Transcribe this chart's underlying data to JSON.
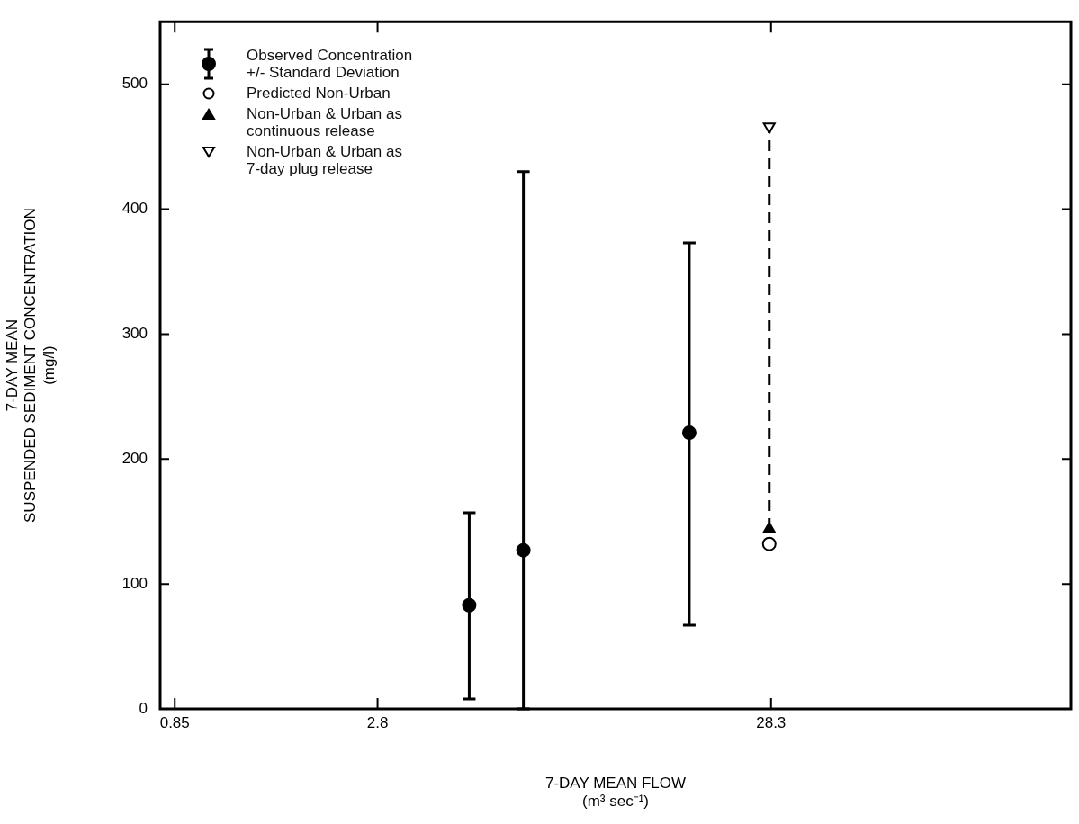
{
  "chart_data": {
    "type": "scatter",
    "xlabel": "7-DAY MEAN FLOW\n(m³ sec⁻¹)",
    "ylabel": "7-DAY MEAN\nSUSPENDED SEDIMENT CONCENTRATION\n(mg/l)",
    "log": "x",
    "xlim": [
      0.78,
      165
    ],
    "xticks": [
      0.85,
      2.8,
      28.3
    ],
    "ylim": [
      0,
      550
    ],
    "yticks": [
      0,
      100,
      200,
      300,
      400,
      500
    ],
    "grid": false,
    "legend": "top left",
    "series": [
      {
        "name": "Observed Concentration\n+/- Standard Deviation",
        "color": "#000000",
        "marker": "circle",
        "x": [
          4.8,
          6.6,
          17.5
        ],
        "values": [
          83,
          127,
          221
        ],
        "errors": [
          [
            8,
            157
          ],
          [
            0,
            430
          ],
          [
            67,
            373
          ]
        ]
      },
      {
        "name": "Predicted Non-Urban",
        "color": "#000000",
        "marker": "circle-open",
        "x": [
          28
        ],
        "values": [
          132
        ]
      },
      {
        "name": "Non-Urban & Urban as\ncontinuous release",
        "color": "#000000",
        "marker": "triangle",
        "x": [
          28
        ],
        "values": [
          144
        ]
      },
      {
        "name": "Non-Urban & Urban as\n7-day plug release",
        "color": "#000000",
        "marker": "triangle-down-open",
        "x": [
          28
        ],
        "values": [
          466
        ]
      },
      {
        "type": "line",
        "color": "#000000",
        "line_style": "dashed",
        "marker": "none",
        "x": [
          28,
          28
        ],
        "values": [
          144,
          466
        ]
      }
    ]
  }
}
